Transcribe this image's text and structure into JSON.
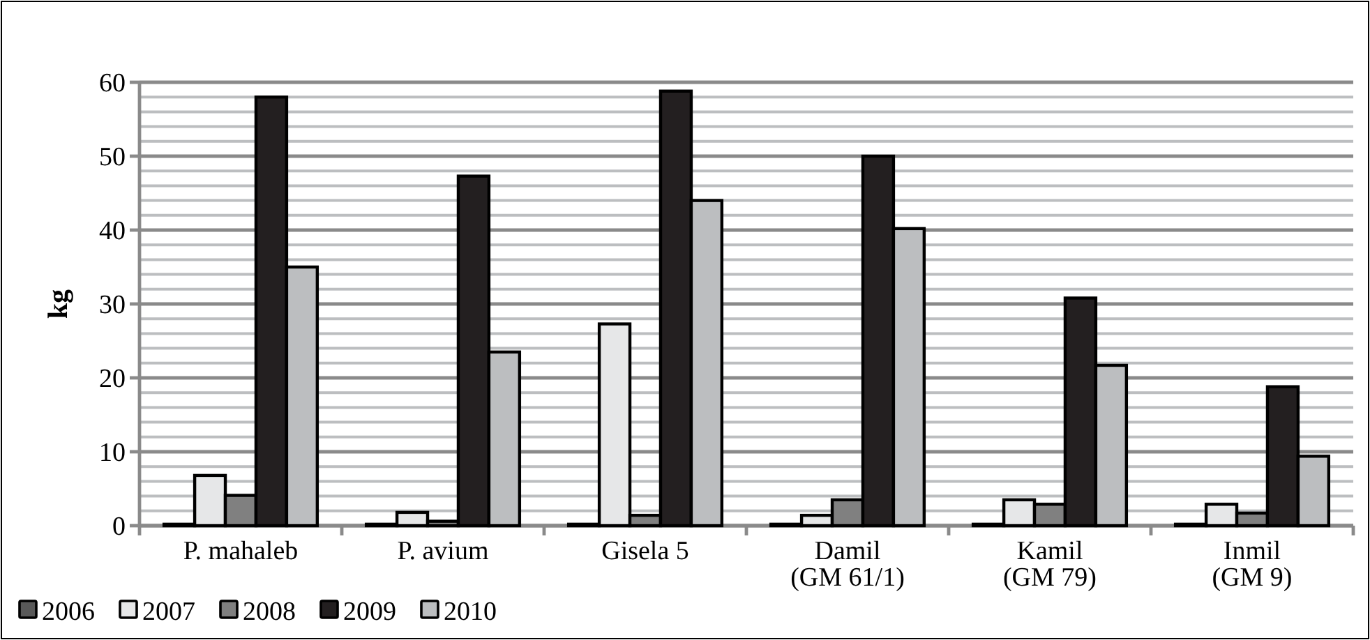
{
  "chart_data": {
    "type": "bar",
    "ylabel": "kg",
    "categories": [
      "P. mahaleb",
      "P. avium",
      "Gisela 5",
      "Damil (GM 61/1)",
      "Kamil (GM 79)",
      "Inmil (GM 9)"
    ],
    "series": [
      {
        "name": "2006",
        "color": "#595959",
        "values": [
          0.2,
          0.2,
          0.2,
          0.2,
          0.2,
          0.2
        ]
      },
      {
        "name": "2007",
        "color": "#e6e7e8",
        "values": [
          6.8,
          1.8,
          27.3,
          1.4,
          3.5,
          2.9
        ]
      },
      {
        "name": "2008",
        "color": "#808080",
        "values": [
          4.1,
          0.6,
          1.4,
          3.5,
          2.9,
          1.7
        ]
      },
      {
        "name": "2009",
        "color": "#231f20",
        "values": [
          58,
          47.3,
          58.8,
          50,
          30.8,
          18.8
        ]
      },
      {
        "name": "2010",
        "color": "#bcbec0",
        "values": [
          35,
          23.5,
          44,
          40.2,
          21.7,
          9.4
        ]
      }
    ],
    "ylim": [
      0,
      60
    ],
    "yticks": [
      0,
      {
        "value": 2,
        "label": null
      },
      {
        "value": 4,
        "label": null
      },
      {
        "value": 6,
        "label": null
      },
      {
        "value": 8,
        "label": null
      },
      10,
      {
        "value": 12,
        "label": null
      },
      {
        "value": 14,
        "label": null
      },
      {
        "value": 16,
        "label": null
      },
      {
        "value": 18,
        "label": null
      },
      20,
      {
        "value": 22,
        "label": null
      },
      {
        "value": 24,
        "label": null
      },
      {
        "value": 26,
        "label": null
      },
      {
        "value": 28,
        "label": null
      },
      30,
      {
        "value": 32,
        "label": null
      },
      {
        "value": 34,
        "label": null
      },
      {
        "value": 36,
        "label": null
      },
      {
        "value": 38,
        "label": null
      },
      40,
      {
        "value": 42,
        "label": null
      },
      {
        "value": 44,
        "label": null
      },
      {
        "value": 46,
        "label": null
      },
      {
        "value": 48,
        "label": null
      },
      50,
      {
        "value": 52,
        "label": null
      },
      {
        "value": 54,
        "label": null
      },
      {
        "value": 56,
        "label": null
      },
      {
        "value": 58,
        "label": null
      },
      60
    ],
    "grid": "y",
    "legend": "bottom left"
  }
}
